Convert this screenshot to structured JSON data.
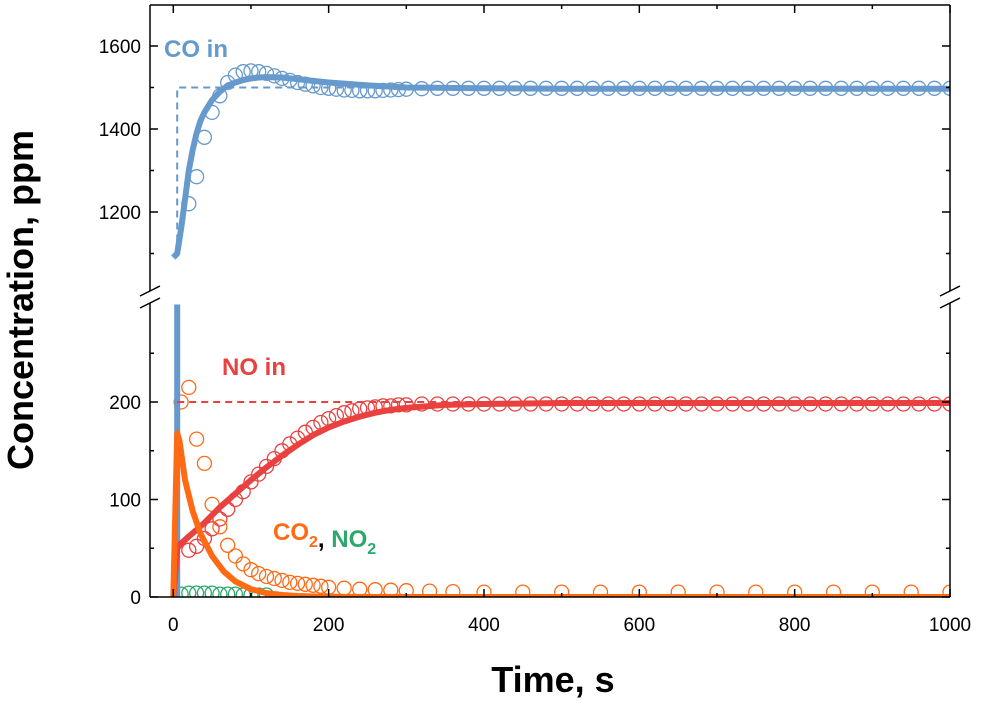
{
  "chart_data": {
    "type": "line",
    "xlabel": "Time, s",
    "ylabel": "Concentration, ppm",
    "xlim": [
      -30,
      1000
    ],
    "x_ticks": [
      0,
      200,
      400,
      600,
      800,
      1000
    ],
    "broken_y_axis": true,
    "upper_segment": {
      "ylim": [
        1000,
        1700
      ],
      "ticks": [
        1200,
        1400,
        1600
      ]
    },
    "lower_segment": {
      "ylim": [
        0,
        300
      ],
      "ticks": [
        0,
        100,
        200
      ]
    },
    "grid": false,
    "annotations": [
      {
        "id": "co",
        "text": "CO in",
        "color": "#6699cc"
      },
      {
        "id": "no",
        "text": "NO in",
        "color": "#e8413f"
      },
      {
        "id": "co2",
        "text": "CO",
        "subscript": "2",
        "color": "#ff6a13"
      },
      {
        "id": "sep",
        "text": ", ",
        "color": "#000000"
      },
      {
        "id": "no2",
        "text": "NO",
        "subscript": "2",
        "color": "#2ca86a"
      }
    ],
    "colors": {
      "co": "#6699cc",
      "no": "#e8413f",
      "co2": "#ff6a13",
      "no2": "#2ca86a"
    },
    "series": [
      {
        "species": "co",
        "kind": "fit",
        "segment": "upper",
        "x": [
          0,
          5,
          10,
          15,
          20,
          25,
          30,
          35,
          40,
          50,
          60,
          70,
          80,
          90,
          100,
          110,
          120,
          140,
          160,
          180,
          200,
          250,
          300,
          400,
          500,
          600,
          700,
          800,
          900,
          1000
        ],
        "y": [
          1090,
          1100,
          1160,
          1230,
          1300,
          1350,
          1390,
          1420,
          1440,
          1470,
          1490,
          1505,
          1512,
          1518,
          1522,
          1524,
          1525,
          1524,
          1520,
          1516,
          1512,
          1505,
          1500,
          1498,
          1497,
          1497,
          1497,
          1497,
          1497,
          1497
        ]
      },
      {
        "species": "co",
        "kind": "inlet",
        "segment": "upper",
        "x": [
          5,
          5,
          1000
        ],
        "y": [
          1100,
          1500,
          1500
        ]
      },
      {
        "species": "co",
        "kind": "measured",
        "segment": "upper",
        "x": [
          20,
          30,
          40,
          50,
          60,
          70,
          80,
          90,
          100,
          110,
          120,
          130,
          140,
          150,
          160,
          170,
          180,
          190,
          200,
          210,
          220,
          230,
          240,
          250,
          260,
          270,
          280,
          290,
          300,
          320,
          340,
          360,
          380,
          400,
          420,
          440,
          460,
          480,
          500,
          520,
          540,
          560,
          580,
          600,
          620,
          640,
          660,
          680,
          700,
          720,
          740,
          760,
          780,
          800,
          820,
          840,
          860,
          880,
          900,
          920,
          940,
          960,
          980,
          1000
        ],
        "y": [
          1220,
          1285,
          1380,
          1440,
          1480,
          1512,
          1530,
          1538,
          1540,
          1538,
          1534,
          1528,
          1522,
          1517,
          1512,
          1508,
          1504,
          1500,
          1498,
          1496,
          1494,
          1493,
          1492,
          1492,
          1492,
          1493,
          1494,
          1495,
          1496,
          1497,
          1498,
          1498,
          1498,
          1498,
          1498,
          1498,
          1498,
          1498,
          1498,
          1498,
          1498,
          1498,
          1498,
          1498,
          1498,
          1498,
          1498,
          1498,
          1498,
          1498,
          1498,
          1498,
          1498,
          1498,
          1498,
          1498,
          1498,
          1498,
          1498,
          1498,
          1498,
          1498,
          1498,
          1498
        ]
      },
      {
        "species": "co",
        "kind": "fit",
        "segment": "lower",
        "x": [
          5,
          5
        ],
        "y": [
          0,
          300
        ]
      },
      {
        "species": "no",
        "kind": "fit",
        "segment": "lower",
        "x": [
          0,
          5,
          10,
          20,
          30,
          40,
          60,
          80,
          100,
          120,
          140,
          160,
          180,
          200,
          220,
          240,
          260,
          280,
          300,
          350,
          400,
          500,
          600,
          700,
          800,
          900,
          1000
        ],
        "y": [
          0,
          50,
          55,
          62,
          69,
          76,
          92,
          106,
          120,
          133,
          145,
          156,
          166,
          174,
          180,
          185,
          189,
          192,
          194,
          197,
          198,
          199,
          199,
          199,
          199,
          199,
          199
        ]
      },
      {
        "species": "no",
        "kind": "inlet",
        "segment": "lower",
        "x": [
          5,
          1000
        ],
        "y": [
          200,
          200
        ]
      },
      {
        "species": "no",
        "kind": "measured",
        "segment": "lower",
        "x": [
          20,
          30,
          40,
          50,
          60,
          70,
          80,
          90,
          100,
          110,
          120,
          130,
          140,
          150,
          160,
          170,
          180,
          190,
          200,
          210,
          220,
          230,
          240,
          250,
          260,
          270,
          280,
          290,
          300,
          320,
          340,
          360,
          380,
          400,
          420,
          440,
          460,
          480,
          500,
          520,
          540,
          560,
          580,
          600,
          620,
          640,
          660,
          680,
          700,
          720,
          740,
          760,
          780,
          800,
          820,
          840,
          860,
          880,
          900,
          920,
          940,
          960,
          980,
          1000
        ],
        "y": [
          48,
          52,
          60,
          70,
          80,
          90,
          100,
          108,
          118,
          126,
          134,
          142,
          150,
          157,
          163,
          169,
          174,
          179,
          183,
          186,
          189,
          191,
          193,
          194,
          195,
          196,
          196,
          197,
          197,
          198,
          198,
          198,
          198,
          198,
          198,
          198,
          198,
          198,
          198,
          198,
          198,
          198,
          198,
          198,
          198,
          198,
          198,
          198,
          198,
          198,
          198,
          198,
          198,
          198,
          198,
          198,
          198,
          198,
          198,
          198,
          198,
          198,
          198,
          198
        ]
      },
      {
        "species": "co2",
        "kind": "fit",
        "segment": "lower",
        "x": [
          0,
          5,
          8,
          15,
          25,
          35,
          50,
          65,
          80,
          100,
          120,
          140,
          160,
          180,
          200,
          300,
          400,
          600,
          800,
          1000
        ],
        "y": [
          0,
          168,
          160,
          120,
          88,
          65,
          42,
          26,
          16,
          8,
          4,
          2,
          1,
          0.5,
          0.2,
          0,
          0,
          0,
          0,
          0
        ]
      },
      {
        "species": "co2",
        "kind": "measured",
        "segment": "lower",
        "x": [
          10,
          20,
          30,
          40,
          50,
          60,
          70,
          80,
          90,
          100,
          110,
          120,
          130,
          140,
          150,
          160,
          170,
          180,
          190,
          200,
          220,
          240,
          260,
          280,
          300,
          330,
          360,
          400,
          450,
          500,
          550,
          600,
          650,
          700,
          750,
          800,
          850,
          900,
          950,
          1000
        ],
        "y": [
          200,
          215,
          162,
          137,
          95,
          72,
          53,
          42,
          34,
          28,
          24,
          21,
          19,
          17,
          15,
          14,
          13,
          12,
          11,
          10,
          9,
          8,
          7.5,
          7,
          6.5,
          6,
          5.5,
          5,
          5,
          5,
          5,
          5,
          5,
          5,
          5,
          5,
          5,
          5,
          5,
          5
        ]
      },
      {
        "species": "no2",
        "kind": "measured",
        "segment": "lower",
        "x": [
          10,
          20,
          30,
          40,
          50,
          60,
          70,
          80,
          90,
          100,
          110,
          120
        ],
        "y": [
          3,
          4,
          4,
          4,
          4,
          3,
          3,
          3,
          2,
          2,
          2,
          2
        ]
      }
    ]
  }
}
